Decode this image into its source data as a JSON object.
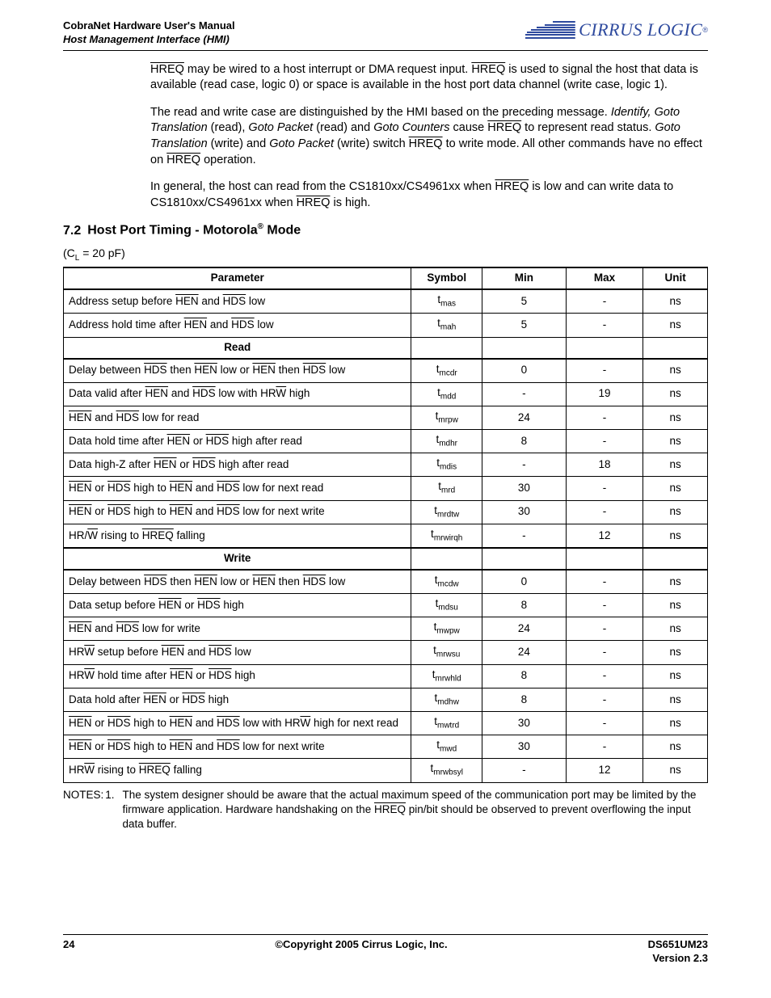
{
  "header": {
    "title": "CobraNet Hardware User's Manual",
    "subtitle": "Host Management Interface (HMI)",
    "logo_text": "CIRRUS LOGIC",
    "logo_color": "#2e4a9e"
  },
  "paragraphs": {
    "p1_a": "HREQ",
    "p1_b": " may be wired to a host interrupt or DMA request input. ",
    "p1_c": "HREQ",
    "p1_d": " is used to signal the host that data is available (read case, logic 0) or space is available in the host port data channel (write case, logic 1).",
    "p2_a": "The read and write case are distinguished by the HMI based on the preceding message. ",
    "p2_b": "Identify, Goto Translation",
    "p2_c": " (read), ",
    "p2_d": "Goto Packet",
    "p2_e": " (read) and ",
    "p2_f": "Goto Counters",
    "p2_g": " cause ",
    "p2_h": "HREQ",
    "p2_i": " to represent read status. ",
    "p2_j": "Goto Translation",
    "p2_k": " (write) and ",
    "p2_l": "Goto Packet",
    "p2_m": " (write) switch ",
    "p2_n": "HREQ",
    "p2_o": " to write mode. All other commands have no effect on ",
    "p2_p": "HREQ",
    "p2_q": " operation.",
    "p3_a": "In general, the host can read from the CS1810xx/CS4961xx when ",
    "p3_b": "HREQ",
    "p3_c": " is low and can write data to CS1810xx/CS4961xx when ",
    "p3_d": "HREQ",
    "p3_e": " is high."
  },
  "section": {
    "number": "7.2",
    "title_a": "Host Port Timing - Motorola",
    "title_b": " Mode",
    "cl_a": "(C",
    "cl_b": "L",
    "cl_c": " = 20 pF)"
  },
  "table": {
    "headers": {
      "param": "Parameter",
      "symbol": "Symbol",
      "min": "Min",
      "max": "Max",
      "unit": "Unit"
    },
    "read_label": "Read",
    "write_label": "Write",
    "rows_top": [
      {
        "param_html": "Address setup before <span class='over'>HEN</span> and <span class='over'>HDS</span> low",
        "sym": "mas",
        "min": "5",
        "max": "-",
        "unit": "ns"
      },
      {
        "param_html": "Address hold time after <span class='over'>HEN</span> and <span class='over'>HDS</span> low",
        "sym": "mah",
        "min": "5",
        "max": "-",
        "unit": "ns"
      }
    ],
    "rows_read": [
      {
        "param_html": "Delay between <span class='over'>HDS</span> then <span class='over'>HEN</span> low or <span class='over'>HEN</span> then <span class='over'>HDS</span> low",
        "sym": "mcdr",
        "min": "0",
        "max": "-",
        "unit": "ns"
      },
      {
        "param_html": "Data valid after <span class='over'>HEN</span> and <span class='over'>HDS</span> low with HR<span class='over'>W</span> high",
        "sym": "mdd",
        "min": "-",
        "max": "19",
        "unit": "ns"
      },
      {
        "param_html": "<span class='over'>HEN</span> and <span class='over'>HDS</span> low for read",
        "sym": "mrpw",
        "min": "24",
        "max": "-",
        "unit": "ns"
      },
      {
        "param_html": "Data hold time after <span class='over'>HEN</span> or <span class='over'>HDS</span> high after read",
        "sym": "mdhr",
        "min": "8",
        "max": "-",
        "unit": "ns"
      },
      {
        "param_html": "Data high-Z after <span class='over'>HEN</span> or <span class='over'>HDS</span> high after read",
        "sym": "mdis",
        "min": "-",
        "max": "18",
        "unit": "ns"
      },
      {
        "param_html": "<span class='over'>HEN</span> or <span class='over'>HDS</span> high to <span class='over'>HEN</span> and <span class='over'>HDS</span> low for next read",
        "sym": "mrd",
        "min": "30",
        "max": "-",
        "unit": "ns"
      },
      {
        "param_html": "<span class='over'>HEN</span> or <span class='over'>HDS</span> high to <span class='over'>HEN</span> and <span class='over'>HDS</span> low for next write",
        "sym": "mrdtw",
        "min": "30",
        "max": "-",
        "unit": "ns"
      },
      {
        "param_html": "HR/<span class='over'>W</span> rising to <span class='over'>HREQ</span> falling",
        "sym": "mrwirqh",
        "min": "-",
        "max": "12",
        "unit": "ns"
      }
    ],
    "rows_write": [
      {
        "param_html": "Delay between <span class='over'>HDS</span> then <span class='over'>HEN</span> low or <span class='over'>HEN</span> then <span class='over'>HDS</span> low",
        "sym": "mcdw",
        "min": "0",
        "max": "-",
        "unit": "ns"
      },
      {
        "param_html": "Data setup before <span class='over'>HEN</span> or <span class='over'>HDS</span> high",
        "sym": "mdsu",
        "min": "8",
        "max": "-",
        "unit": "ns"
      },
      {
        "param_html": "<span class='over'>HEN</span> and <span class='over'>HDS</span> low for write",
        "sym": "mwpw",
        "min": "24",
        "max": "-",
        "unit": "ns"
      },
      {
        "param_html": "HR<span class='over'>W</span> setup before <span class='over'>HEN</span> and <span class='over'>HDS</span> low",
        "sym": "mrwsu",
        "min": "24",
        "max": "-",
        "unit": "ns"
      },
      {
        "param_html": "HR<span class='over'>W</span> hold time after <span class='over'>HEN</span> or <span class='over'>HDS</span> high",
        "sym": "mrwhld",
        "min": "8",
        "max": "-",
        "unit": "ns"
      },
      {
        "param_html": "Data hold after <span class='over'>HEN</span> or <span class='over'>HDS</span> high",
        "sym": "mdhw",
        "min": "8",
        "max": "-",
        "unit": "ns"
      },
      {
        "param_html": "<span class='over'>HEN</span> or <span class='over'>HDS</span> high to <span class='over'>HEN</span> and <span class='over'>HDS</span> low with HR<span class='over'>W</span> high for next read",
        "sym": "mwtrd",
        "min": "30",
        "max": "-",
        "unit": "ns"
      },
      {
        "param_html": "<span class='over'>HEN</span> or <span class='over'>HDS</span> high to <span class='over'>HEN</span> and <span class='over'>HDS</span> low for next write",
        "sym": "mwd",
        "min": "30",
        "max": "-",
        "unit": "ns"
      },
      {
        "param_html": "HR<span class='over'>W</span> rising to <span class='over'>HREQ</span> falling",
        "sym": "mrwbsyl",
        "min": "-",
        "max": "12",
        "unit": "ns"
      }
    ]
  },
  "notes": {
    "label": "NOTES:",
    "num": "1.",
    "text_a": "The system designer should be aware that the actual maximum speed of the communication port may be limited by the firmware application. Hardware handshaking on the ",
    "text_b": "HREQ",
    "text_c": " pin/bit should be observed to prevent overflowing the input data buffer."
  },
  "footer": {
    "page": "24",
    "copyright": "©Copyright 2005 Cirrus Logic, Inc.",
    "doc": "DS651UM23",
    "version": "Version 2.3"
  }
}
